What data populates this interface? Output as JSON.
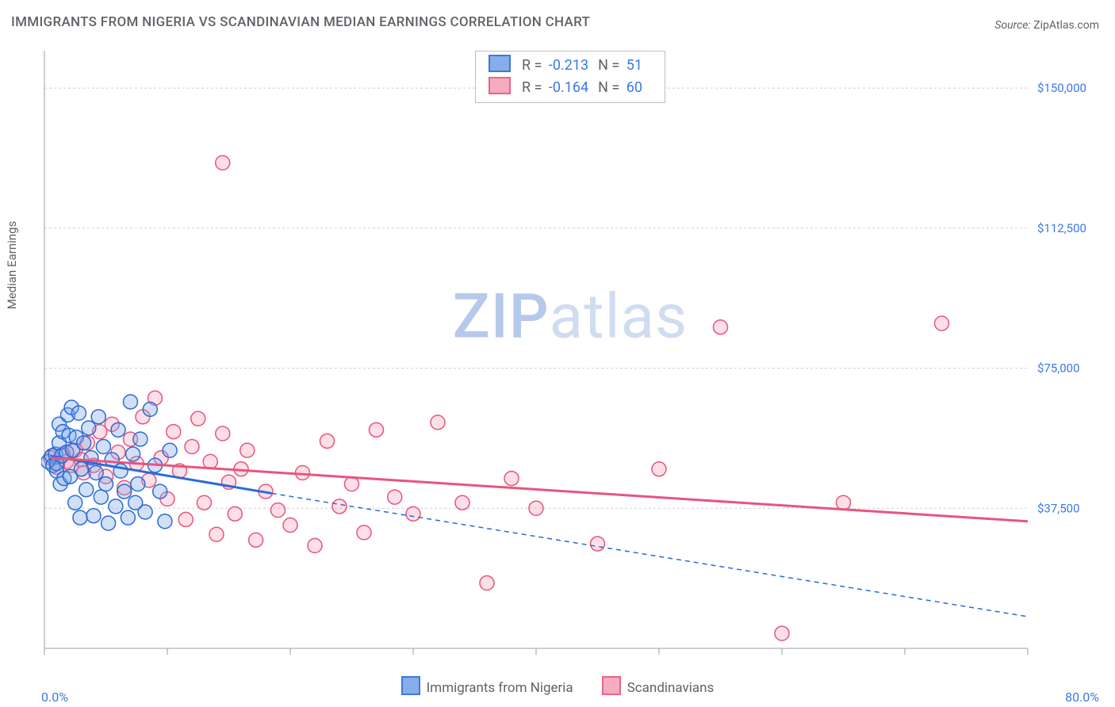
{
  "title": "IMMIGRANTS FROM NIGERIA VS SCANDINAVIAN MEDIAN EARNINGS CORRELATION CHART",
  "source_label": "Source: ",
  "source_value": "ZipAtlas.com",
  "ylabel": "Median Earnings",
  "watermark_a": "ZIP",
  "watermark_b": "atlas",
  "chart": {
    "type": "scatter-correlation",
    "background_color": "#ffffff",
    "grid_color": "#cfcfcf",
    "axis_color": "#9e9e9e",
    "value_color": "#3b78e7",
    "text_color": "#5f6368",
    "title_fontsize": 17,
    "label_fontsize": 15,
    "legend_fontsize": 17,
    "marker_radius": 9,
    "marker_stroke_width": 1.5,
    "marker_fill_opacity": 0.35,
    "xlim": [
      0,
      80
    ],
    "ylim": [
      0,
      160000
    ],
    "x_ticks": [
      0,
      10,
      20,
      30,
      40,
      50,
      60,
      70,
      80
    ],
    "x_tick_labels": {
      "0": "0.0%",
      "80": "80.0%"
    },
    "y_ticks": [
      37500,
      75000,
      112500,
      150000
    ],
    "y_tick_labels": [
      "$37,500",
      "$75,000",
      "$112,500",
      "$150,000"
    ],
    "series": [
      {
        "key": "nigeria",
        "label": "Immigrants from Nigeria",
        "color_stroke": "#2b6bd6",
        "color_fill": "#7ba6e8",
        "R_label": "R =",
        "R": "-0.213",
        "N_label": "N =",
        "N": "51",
        "trend": {
          "solid": {
            "x1": 0.5,
            "y1": 51500,
            "x2": 18.5,
            "y2": 41500
          },
          "dashed": {
            "x1": 18.5,
            "y1": 41500,
            "x2": 80,
            "y2": 8500
          }
        },
        "points": [
          [
            0.3,
            50000
          ],
          [
            0.6,
            51500
          ],
          [
            0.7,
            49000
          ],
          [
            0.9,
            52000
          ],
          [
            1.0,
            47500
          ],
          [
            1.0,
            49500
          ],
          [
            1.2,
            55000
          ],
          [
            1.2,
            60000
          ],
          [
            1.3,
            44000
          ],
          [
            1.4,
            51500
          ],
          [
            1.5,
            58000
          ],
          [
            1.6,
            45500
          ],
          [
            1.8,
            52500
          ],
          [
            1.9,
            62500
          ],
          [
            2.0,
            57000
          ],
          [
            2.1,
            46000
          ],
          [
            2.2,
            64500
          ],
          [
            2.3,
            53000
          ],
          [
            2.5,
            39000
          ],
          [
            2.6,
            56500
          ],
          [
            2.8,
            63000
          ],
          [
            2.9,
            35000
          ],
          [
            3.0,
            48000
          ],
          [
            3.2,
            55000
          ],
          [
            3.4,
            42500
          ],
          [
            3.6,
            59000
          ],
          [
            3.8,
            51000
          ],
          [
            4.0,
            35500
          ],
          [
            4.2,
            47000
          ],
          [
            4.4,
            62000
          ],
          [
            4.6,
            40500
          ],
          [
            4.8,
            54000
          ],
          [
            5.0,
            44000
          ],
          [
            5.2,
            33500
          ],
          [
            5.5,
            50500
          ],
          [
            5.8,
            38000
          ],
          [
            6.0,
            58500
          ],
          [
            6.2,
            47500
          ],
          [
            6.5,
            42000
          ],
          [
            6.8,
            35000
          ],
          [
            7.0,
            66000
          ],
          [
            7.2,
            52000
          ],
          [
            7.4,
            39000
          ],
          [
            7.6,
            44000
          ],
          [
            7.8,
            56000
          ],
          [
            8.2,
            36500
          ],
          [
            8.6,
            64000
          ],
          [
            9.0,
            49000
          ],
          [
            9.4,
            42000
          ],
          [
            9.8,
            34000
          ],
          [
            10.2,
            53000
          ]
        ]
      },
      {
        "key": "scandinavians",
        "label": "Scandinavians",
        "color_stroke": "#e7557e",
        "color_fill": "#f5a3ba",
        "R_label": "R =",
        "R": "-0.164",
        "N_label": "N =",
        "N": "60",
        "trend": {
          "solid": {
            "x1": 0.5,
            "y1": 51000,
            "x2": 80,
            "y2": 34000
          },
          "dashed": null
        },
        "points": [
          [
            0.5,
            51000
          ],
          [
            1.0,
            48500
          ],
          [
            1.5,
            52000
          ],
          [
            1.8,
            50000
          ],
          [
            2.2,
            49000
          ],
          [
            2.5,
            53000
          ],
          [
            3.0,
            50500
          ],
          [
            3.2,
            47000
          ],
          [
            3.5,
            55000
          ],
          [
            4.0,
            49000
          ],
          [
            4.5,
            58000
          ],
          [
            5.0,
            46000
          ],
          [
            5.5,
            60000
          ],
          [
            6.0,
            52500
          ],
          [
            6.5,
            43000
          ],
          [
            7.0,
            56000
          ],
          [
            7.5,
            49500
          ],
          [
            8.0,
            62000
          ],
          [
            8.5,
            45000
          ],
          [
            9.0,
            67000
          ],
          [
            9.5,
            51000
          ],
          [
            10.0,
            40000
          ],
          [
            10.5,
            58000
          ],
          [
            11.0,
            47500
          ],
          [
            11.5,
            34500
          ],
          [
            12.0,
            54000
          ],
          [
            12.5,
            61500
          ],
          [
            13.0,
            39000
          ],
          [
            13.5,
            50000
          ],
          [
            14.0,
            30500
          ],
          [
            14.5,
            57500
          ],
          [
            15.0,
            44500
          ],
          [
            15.5,
            36000
          ],
          [
            16.0,
            48000
          ],
          [
            16.5,
            53000
          ],
          [
            17.2,
            29000
          ],
          [
            18.0,
            42000
          ],
          [
            19.0,
            37000
          ],
          [
            20.0,
            33000
          ],
          [
            21.0,
            47000
          ],
          [
            22.0,
            27500
          ],
          [
            23.0,
            55500
          ],
          [
            24.0,
            38000
          ],
          [
            25.0,
            44000
          ],
          [
            26.0,
            31000
          ],
          [
            27.0,
            58500
          ],
          [
            28.5,
            40500
          ],
          [
            30.0,
            36000
          ],
          [
            32.0,
            60500
          ],
          [
            34.0,
            39000
          ],
          [
            36.0,
            17500
          ],
          [
            38.0,
            45500
          ],
          [
            40.0,
            37500
          ],
          [
            45.0,
            28000
          ],
          [
            50.0,
            48000
          ],
          [
            55.0,
            86000
          ],
          [
            60.0,
            4000
          ],
          [
            65.0,
            39000
          ],
          [
            14.5,
            130000
          ],
          [
            73.0,
            87000
          ]
        ]
      }
    ]
  }
}
